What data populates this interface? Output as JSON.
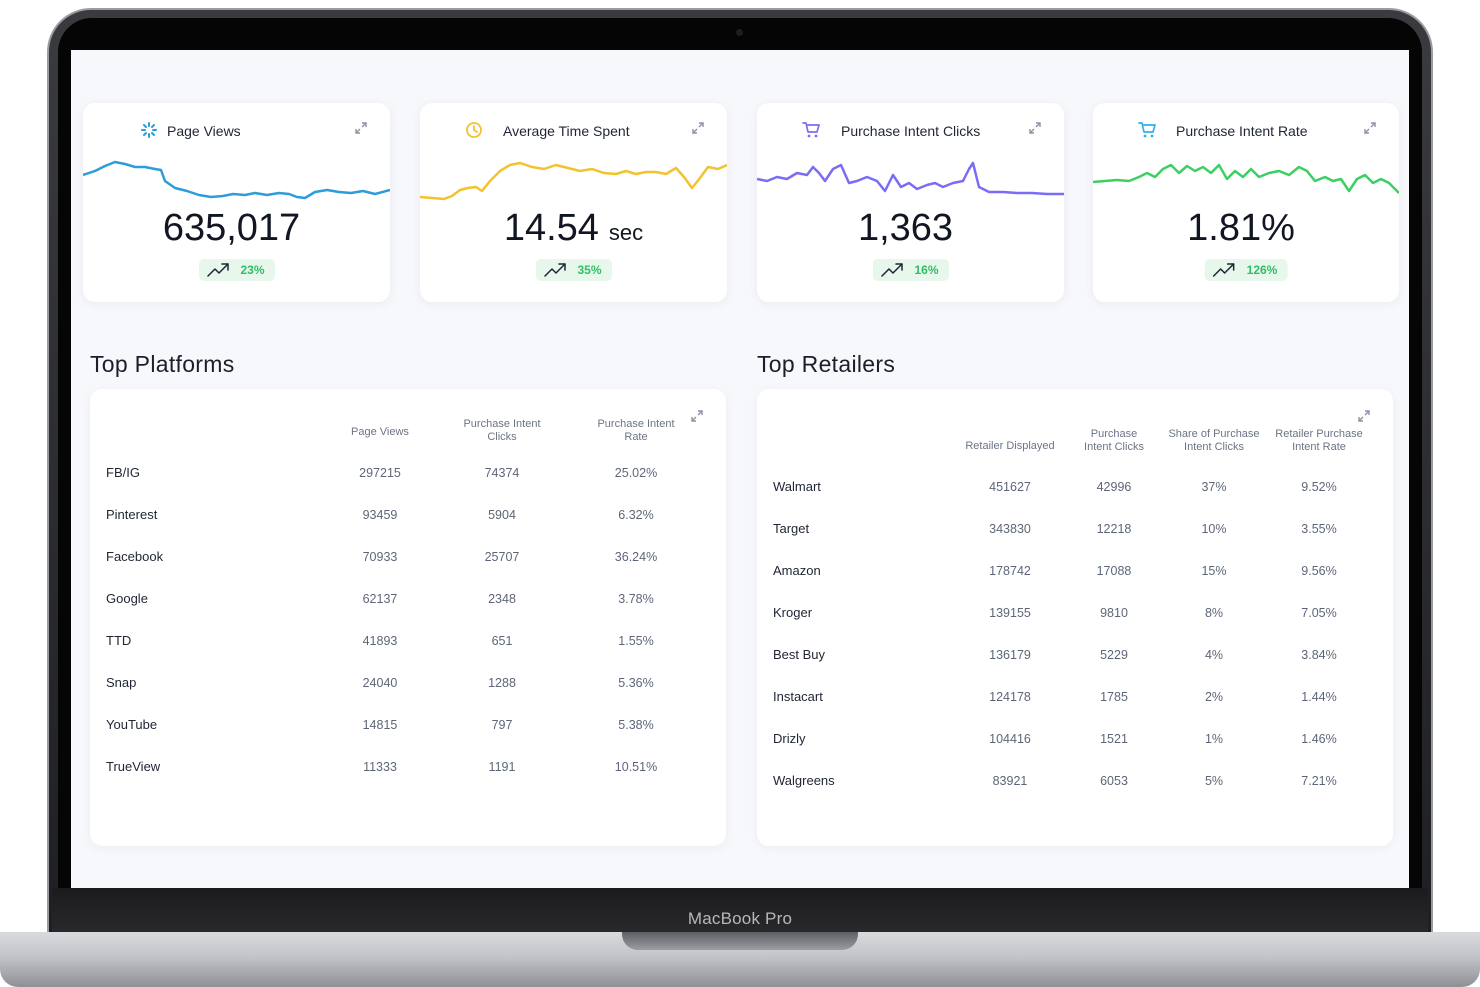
{
  "device": {
    "brand": "MacBook Pro"
  },
  "colors": {
    "page_views": "#2d9cdb",
    "avg_time": "#f2c230",
    "pi_clicks": "#7b6cf6",
    "pi_rate": "#3ccf62",
    "trend_up": "#2fbf63"
  },
  "kpis": [
    {
      "icon": "loader-icon",
      "title": "Page Views",
      "value": "635,017",
      "unit": "",
      "change": "23%"
    },
    {
      "icon": "clock-icon",
      "title": "Average Time Spent",
      "value": "14.54",
      "unit": "sec",
      "change": "35%"
    },
    {
      "icon": "cart-icon",
      "title": "Purchase Intent Clicks",
      "value": "1,363",
      "unit": "",
      "change": "16%"
    },
    {
      "icon": "cart-icon",
      "title": "Purchase Intent Rate",
      "value": "1.81%",
      "unit": "",
      "change": "126%"
    }
  ],
  "platforms": {
    "title": "Top Platforms",
    "headers": [
      "Page Views",
      "Purchase Intent\nClicks",
      "Purchase Intent\nRate"
    ],
    "rows": [
      {
        "name": "FB/IG",
        "views": "297215",
        "clicks": "74374",
        "rate": "25.02%"
      },
      {
        "name": "Pinterest",
        "views": "93459",
        "clicks": "5904",
        "rate": "6.32%"
      },
      {
        "name": "Facebook",
        "views": "70933",
        "clicks": "25707",
        "rate": "36.24%"
      },
      {
        "name": "Google",
        "views": "62137",
        "clicks": "2348",
        "rate": "3.78%"
      },
      {
        "name": "TTD",
        "views": "41893",
        "clicks": "651",
        "rate": "1.55%"
      },
      {
        "name": "Snap",
        "views": "24040",
        "clicks": "1288",
        "rate": "5.36%"
      },
      {
        "name": "YouTube",
        "views": "14815",
        "clicks": "797",
        "rate": "5.38%"
      },
      {
        "name": "TrueView",
        "views": "11333",
        "clicks": "1191",
        "rate": "10.51%"
      }
    ]
  },
  "retailers": {
    "title": "Top Retailers",
    "headers": [
      "Retailer Displayed",
      "Purchase\nIntent Clicks",
      "Share of Purchase\nIntent Clicks",
      "Retailer Purchase\nIntent Rate"
    ],
    "rows": [
      {
        "name": "Walmart",
        "displayed": "451627",
        "clicks": "42996",
        "share": "37%",
        "rate": "9.52%"
      },
      {
        "name": "Target",
        "displayed": "343830",
        "clicks": "12218",
        "share": "10%",
        "rate": "3.55%"
      },
      {
        "name": "Amazon",
        "displayed": "178742",
        "clicks": "17088",
        "share": "15%",
        "rate": "9.56%"
      },
      {
        "name": "Kroger",
        "displayed": "139155",
        "clicks": "9810",
        "share": "8%",
        "rate": "7.05%"
      },
      {
        "name": "Best Buy",
        "displayed": "136179",
        "clicks": "5229",
        "share": "4%",
        "rate": "3.84%"
      },
      {
        "name": "Instacart",
        "displayed": "124178",
        "clicks": "1785",
        "share": "2%",
        "rate": "1.44%"
      },
      {
        "name": "Drizly",
        "displayed": "104416",
        "clicks": "1521",
        "share": "1%",
        "rate": "1.46%"
      },
      {
        "name": "Walgreens",
        "displayed": "83921",
        "clicks": "6053",
        "share": "5%",
        "rate": "7.21%"
      }
    ]
  }
}
